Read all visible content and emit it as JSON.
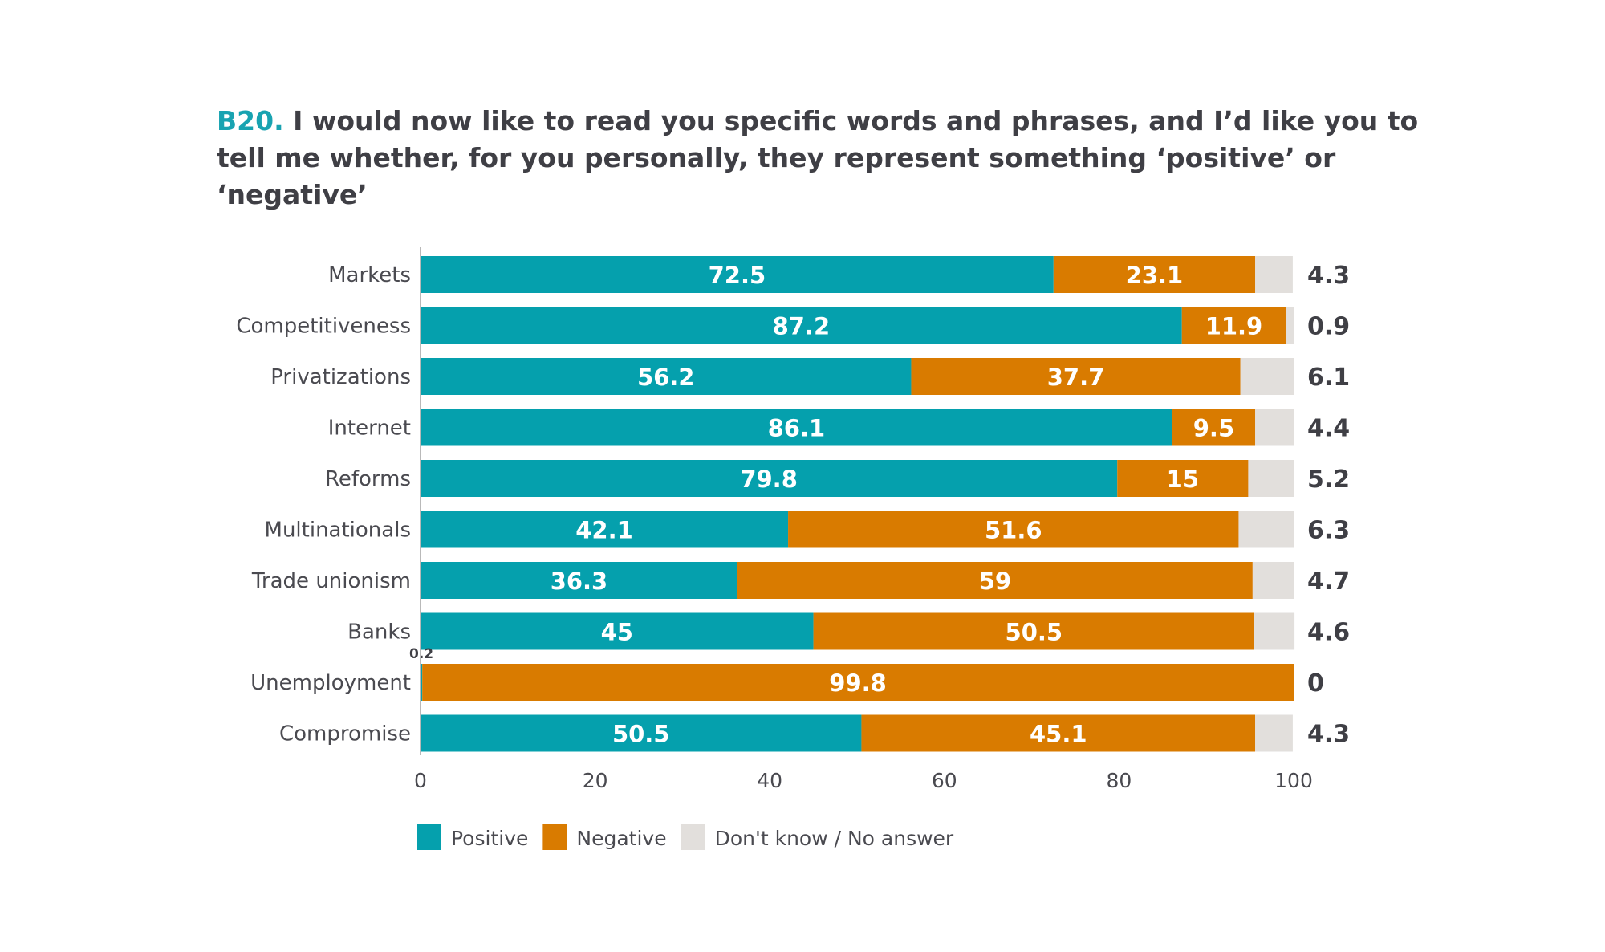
{
  "title": {
    "question_id": "B20.",
    "text": " I would now like to read you specific words and phrases, and I’d like you to tell me whether, for you personally, they represent something ‘positive’ or ‘negative’"
  },
  "chart_data": {
    "type": "bar",
    "orientation": "horizontal",
    "stacked": true,
    "categories": [
      "Markets",
      "Competitiveness",
      "Privatizations",
      "Internet",
      "Reforms",
      "Multinationals",
      "Trade unionism",
      "Banks",
      "Unemployment",
      "Compromise"
    ],
    "series": [
      {
        "name": "Positive",
        "color": "#05a0ad",
        "values": [
          72.5,
          87.2,
          56.2,
          86.1,
          79.8,
          42.1,
          36.3,
          45,
          0.2,
          50.5
        ]
      },
      {
        "name": "Negative",
        "color": "#d97b00",
        "values": [
          23.1,
          11.9,
          37.7,
          9.5,
          15,
          51.6,
          59,
          50.5,
          99.8,
          45.1
        ]
      },
      {
        "name": "Don't know / No answer",
        "color": "#e2dfdc",
        "values": [
          4.3,
          0.9,
          6.1,
          4.4,
          5.2,
          6.3,
          4.7,
          4.6,
          0,
          4.3
        ]
      }
    ],
    "xlim": [
      0,
      100
    ],
    "xticks": [
      0,
      20,
      40,
      60,
      80,
      100
    ],
    "legend_position": "bottom-left",
    "grid": false
  }
}
